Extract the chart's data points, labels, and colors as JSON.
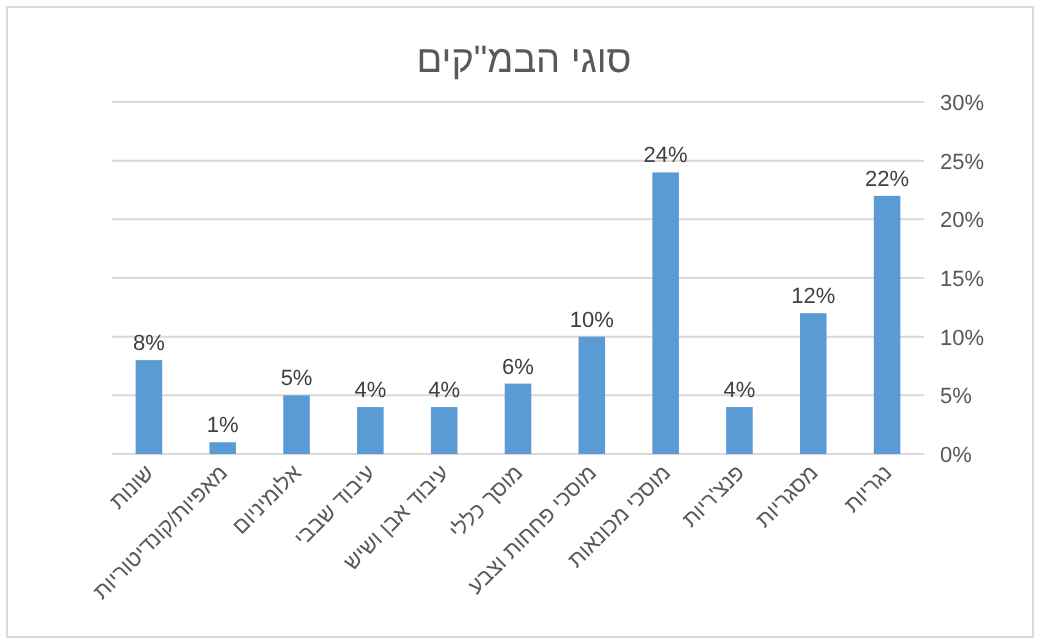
{
  "chart_data": {
    "type": "bar",
    "title": "סוגי הבמ\"קים",
    "categories": [
      "שונות",
      "מאפיות/קונדיטוריות",
      "אלומיניום",
      "עיבוד שבבי",
      "עיבוד אבן ושיש",
      "מוסך כללי",
      "מוסכי פחחות וצבע",
      "מוסכי מכונאות",
      "פנצ'ריות",
      "מסגריות",
      "נגריות"
    ],
    "values": [
      8,
      1,
      5,
      4,
      4,
      6,
      10,
      24,
      4,
      12,
      22
    ],
    "value_labels": [
      "8%",
      "1%",
      "5%",
      "4%",
      "4%",
      "6%",
      "10%",
      "24%",
      "4%",
      "12%",
      "22%"
    ],
    "color": "#5b9bd5",
    "ylim": [
      0,
      30
    ],
    "yticks": [
      {
        "value": 0,
        "label": "0%"
      },
      {
        "value": 5,
        "label": "5%"
      },
      {
        "value": 10,
        "label": "10%"
      },
      {
        "value": 15,
        "label": "15%"
      },
      {
        "value": 20,
        "label": "20%"
      },
      {
        "value": 25,
        "label": "25%"
      },
      {
        "value": 30,
        "label": "30%"
      }
    ],
    "grid": "y"
  }
}
